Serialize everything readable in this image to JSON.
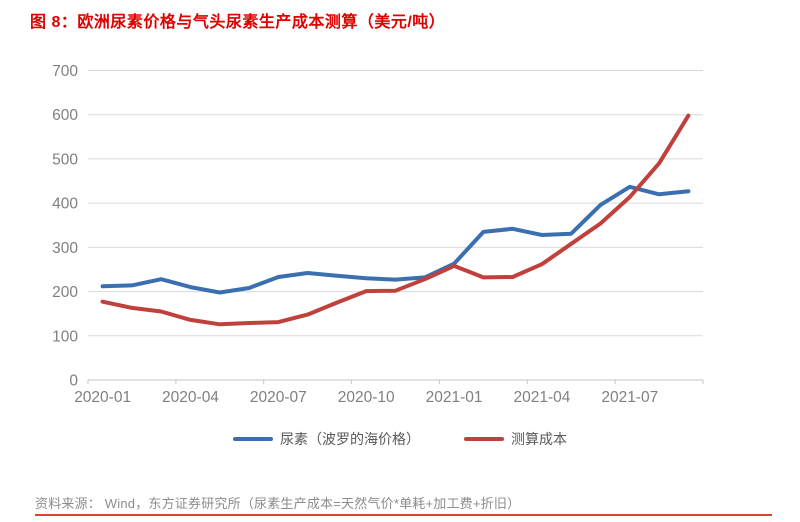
{
  "title": "图 8：欧洲尿素价格与气头尿素生产成本测算（美元/吨）",
  "source_note": "资料来源：  Wind，东方证券研究所（尿素生产成本=天然气价*单耗+加工费+折旧）",
  "colors": {
    "title_red": "#e00000",
    "series_blue": "#3a6fb0",
    "series_red": "#c0413c",
    "divider_red": "#d0492b",
    "axis_text_gray": "#808080",
    "legend_text_gray": "#595959",
    "gridline_gray": "#d9d9d9",
    "axis_line_gray": "#c6c6c6"
  },
  "chart_data": {
    "type": "line",
    "title": "图 8：欧洲尿素价格与气头尿素生产成本测算（美元/吨）",
    "xlabel": "",
    "ylabel": "",
    "ylim": [
      0,
      700
    ],
    "yticks": [
      0,
      100,
      200,
      300,
      400,
      500,
      600,
      700
    ],
    "grid": true,
    "legend_position": "bottom",
    "categories": [
      "2020-01",
      "2020-02",
      "2020-03",
      "2020-04",
      "2020-05",
      "2020-06",
      "2020-07",
      "2020-08",
      "2020-09",
      "2020-10",
      "2020-11",
      "2020-12",
      "2021-01",
      "2021-02",
      "2021-03",
      "2021-04",
      "2021-05",
      "2021-06",
      "2021-07",
      "2021-08",
      "2021-09"
    ],
    "xtick_labels": [
      "2020-01",
      "2020-04",
      "2020-07",
      "2020-10",
      "2021-01",
      "2021-04",
      "2021-07"
    ],
    "xtick_every": 3,
    "series": [
      {
        "name": "尿素（波罗的海价格）",
        "color": "#3a6fb0",
        "values": [
          212,
          214,
          228,
          210,
          198,
          208,
          233,
          242,
          236,
          230,
          227,
          232,
          263,
          335,
          342,
          328,
          331,
          396,
          437,
          420,
          427
        ]
      },
      {
        "name": "测算成本",
        "color": "#c0413c",
        "values": [
          177,
          163,
          155,
          136,
          126,
          129,
          131,
          148,
          175,
          201,
          202,
          228,
          258,
          232,
          233,
          262,
          308,
          354,
          414,
          490,
          598
        ]
      }
    ]
  }
}
